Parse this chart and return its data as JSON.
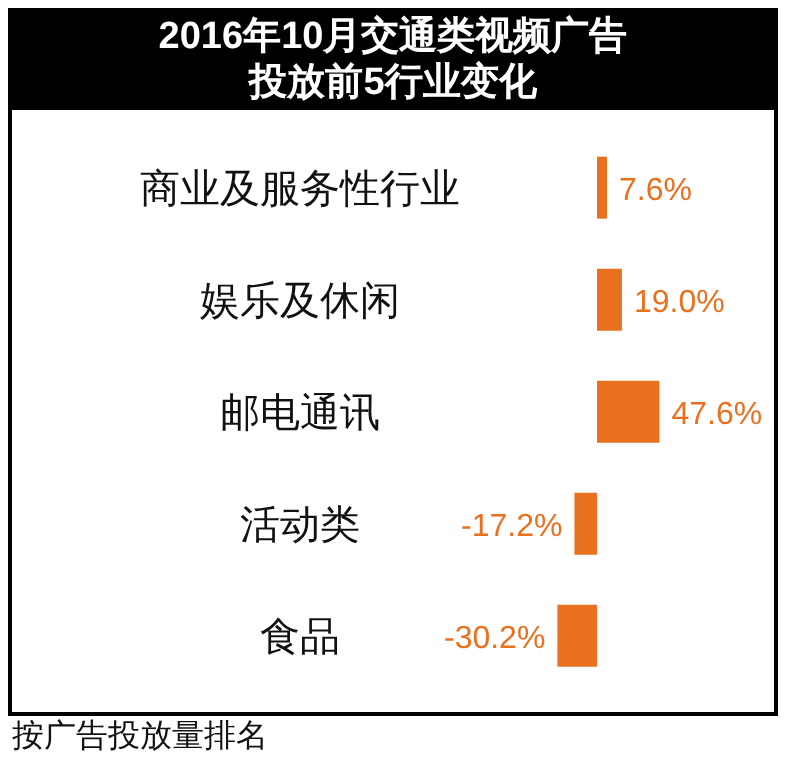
{
  "chart_data": {
    "type": "bar",
    "orientation": "horizontal",
    "title": "2016年10月交通类视频广告投放前5行业变化",
    "categories": [
      "商业及服务性行业",
      "娱乐及休闲",
      "邮电通讯",
      "活动类",
      "食品"
    ],
    "values": [
      7.6,
      19.0,
      47.6,
      -17.2,
      -30.2
    ],
    "value_labels": [
      "7.6%",
      "19.0%",
      "47.6%",
      "-17.2%",
      "-30.2%"
    ],
    "color": "#e8701f",
    "annotations": [
      "按广告投放量排名"
    ]
  }
}
